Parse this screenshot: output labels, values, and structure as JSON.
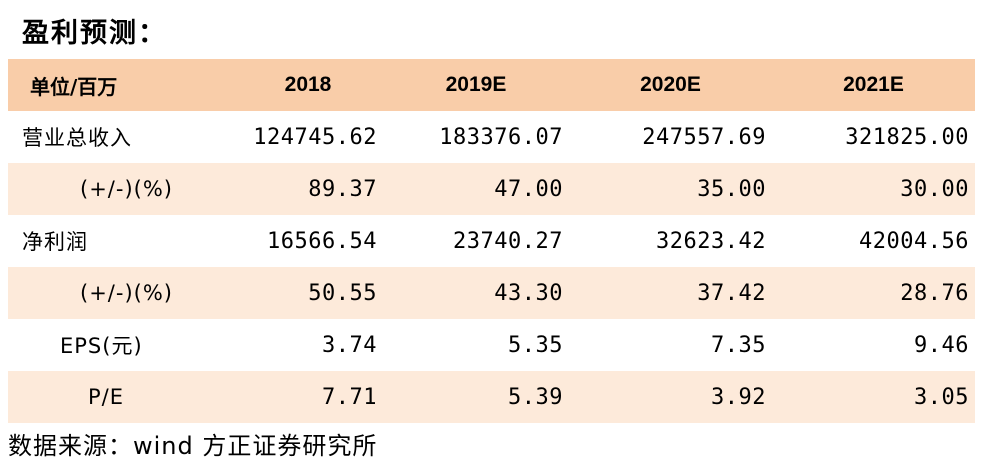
{
  "heading": "盈利预测：",
  "table": {
    "columns": [
      "单位/百万",
      "2018",
      "2019E",
      "2020E",
      "2021E"
    ],
    "rows": [
      {
        "label": "营业总收入",
        "values": [
          "124745.62",
          "183376.07",
          "247557.69",
          "321825.00"
        ]
      },
      {
        "label": "(+/-)(%)",
        "values": [
          "89.37",
          "47.00",
          "35.00",
          "30.00"
        ]
      },
      {
        "label": "净利润",
        "values": [
          "16566.54",
          "23740.27",
          "32623.42",
          "42004.56"
        ]
      },
      {
        "label": "(+/-)(%)",
        "values": [
          "50.55",
          "43.30",
          "37.42",
          "28.76"
        ]
      },
      {
        "label": "EPS(元)",
        "values": [
          "3.74",
          "5.35",
          "7.35",
          "9.46"
        ]
      },
      {
        "label": "P/E",
        "values": [
          "7.71",
          "5.39",
          "3.92",
          "3.05"
        ]
      }
    ]
  },
  "source": "数据来源：wind 方正证券研究所",
  "colors": {
    "header_bg": "#f9cda9",
    "band_bg": "#fdeada",
    "text": "#000000"
  }
}
